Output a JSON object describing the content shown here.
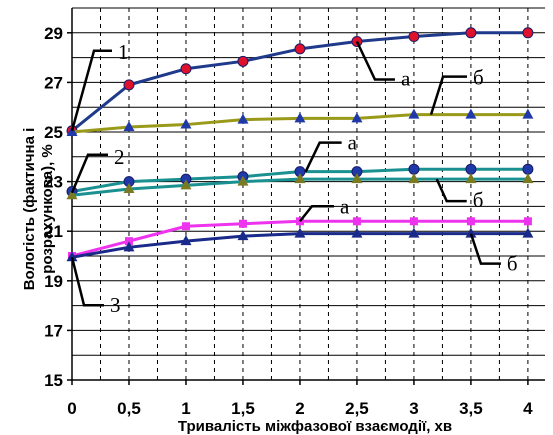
{
  "chart_data": {
    "type": "line",
    "xlabel": "Тривалість міжфазової взаємодії, хв",
    "ylabel_lines": [
      "Вологість (фактична і",
      "розрахункова), %"
    ],
    "x_ticks": [
      "0",
      "0,5",
      "1",
      "1,5",
      "2",
      "2,5",
      "3",
      "3,5",
      "4"
    ],
    "y_ticks": [
      "15",
      "17",
      "19",
      "21",
      "23",
      "25",
      "27",
      "29"
    ],
    "xlim": [
      0,
      4.15
    ],
    "ylim": [
      15,
      30
    ],
    "grid": true,
    "x": [
      0,
      0.5,
      1,
      1.5,
      2,
      2.5,
      3,
      3.5,
      4
    ],
    "series": [
      {
        "marker": "circle",
        "color": "#1f3a8a",
        "marker_color": "#e0112b",
        "values": [
          25.05,
          26.9,
          27.55,
          27.85,
          28.35,
          28.65,
          28.85,
          29.0,
          29.0
        ]
      },
      {
        "marker": "triangle",
        "color": "#9a9a1a",
        "marker_color": "#1f3aa8",
        "values": [
          25.0,
          25.2,
          25.3,
          25.5,
          25.55,
          25.55,
          25.7,
          25.7,
          25.7
        ]
      },
      {
        "marker": "circle",
        "color": "#1a9090",
        "marker_color": "#1f3aa8",
        "values": [
          22.6,
          23.0,
          23.1,
          23.2,
          23.4,
          23.4,
          23.5,
          23.5,
          23.5
        ]
      },
      {
        "marker": "triangle",
        "color": "#1a9090",
        "marker_color": "#7a7a20",
        "values": [
          22.45,
          22.7,
          22.85,
          23.0,
          23.1,
          23.1,
          23.1,
          23.1,
          23.1
        ]
      },
      {
        "marker": "square",
        "color": "#ee33ee",
        "marker_color": "#ee33ee",
        "values": [
          20.0,
          20.6,
          21.2,
          21.3,
          21.4,
          21.4,
          21.4,
          21.4,
          21.4
        ]
      },
      {
        "marker": "triangle",
        "color": "#1a2a8a",
        "marker_color": "#1a2a8a",
        "values": [
          19.95,
          20.35,
          20.6,
          20.8,
          20.9,
          20.9,
          20.9,
          20.9,
          20.9
        ]
      }
    ],
    "annotations": [
      {
        "text": "1",
        "point": [
          0,
          25.05
        ]
      },
      {
        "text": "а",
        "point": [
          2.5,
          28.65
        ]
      },
      {
        "text": "б",
        "point": [
          3.15,
          25.7
        ]
      },
      {
        "text": "2",
        "point": [
          0,
          22.55
        ]
      },
      {
        "text": "а",
        "point": [
          2.05,
          23.4
        ]
      },
      {
        "text": "б",
        "point": [
          3.2,
          23.1
        ]
      },
      {
        "text": "а",
        "point": [
          2.0,
          21.4
        ]
      },
      {
        "text": "б",
        "point": [
          3.5,
          20.9
        ]
      },
      {
        "text": "3",
        "point": [
          0,
          19.95
        ]
      }
    ]
  }
}
